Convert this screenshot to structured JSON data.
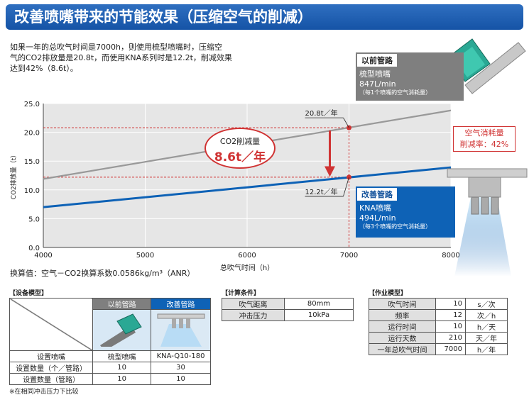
{
  "header": {
    "title": "改善喷嘴带来的节能效果（压缩空气的削减）"
  },
  "intro": {
    "line1": "如果一年的总吹气时间是7000h，则使用梳型喷嘴时，压缩空",
    "line2": "气的CO2排放量是20.8t，而使用KNA系列时是12.2t，削减效果",
    "line3": "达到42%（8.6t）。"
  },
  "before_box": {
    "header": "以前管路",
    "line1": "梳型喷嘴",
    "line2": "847L/min",
    "line3": "（每1个喷嘴的空气消耗量）"
  },
  "after_box": {
    "header": "改善管路",
    "line1": "KNA喷嘴",
    "line2": "494L/min",
    "line3": "（每3个喷嘴的空气消耗量）"
  },
  "reduction_note": {
    "line1": "空气消耗量",
    "line2": "削减率：42%"
  },
  "reduction_oval": {
    "label": "CO2削减量",
    "value": "8.6t／年"
  },
  "chart_data": {
    "type": "line",
    "xlabel": "总吹气时间（h）",
    "ylabel": "CO2排放量（t）",
    "xlim": [
      4000,
      8000
    ],
    "ylim": [
      0,
      25
    ],
    "x_ticks": [
      "4000",
      "5000",
      "6000",
      "7000",
      "8000"
    ],
    "y_ticks": [
      "0.0",
      "5.0",
      "10.0",
      "15.0",
      "20.0",
      "25.0"
    ],
    "grid": true,
    "series": [
      {
        "label": "以前管路（梳型喷嘴）",
        "color": "#999999",
        "x": [
          4000,
          8000
        ],
        "y": [
          11.9,
          23.8
        ]
      },
      {
        "label": "改善管路（KNA喷嘴）",
        "color": "#0e62b6",
        "x": [
          4000,
          8000
        ],
        "y": [
          7.0,
          13.9
        ]
      }
    ],
    "annotations": [
      {
        "text": "20.8t／年",
        "x": 7000,
        "y": 20.8
      },
      {
        "text": "12.2t／年",
        "x": 7000,
        "y": 12.2
      }
    ]
  },
  "conversion_text": "换算值：空气－CO2换算系数0.0586kg/m³（ANR）",
  "equipment_table": {
    "title": "【设备模型】",
    "col_before": "以前管路",
    "col_after": "改善管路",
    "rows": [
      {
        "label": "设置喷嘴",
        "before": "梳型喷嘴",
        "after": "KNA-Q10-180"
      },
      {
        "label": "设置数量（个／管路）",
        "before": "10",
        "after": "30"
      },
      {
        "label": "设置数量（管路）",
        "before": "10",
        "after": "10"
      }
    ]
  },
  "calc_table": {
    "title": "【计算条件】",
    "rows": [
      {
        "label": "吹气距离",
        "value": "80mm"
      },
      {
        "label": "冲击压力",
        "value": "10kPa"
      }
    ]
  },
  "work_table": {
    "title": "【作业模型】",
    "rows": [
      {
        "label": "吹气时间",
        "value": "10",
        "unit": "s／次"
      },
      {
        "label": "频率",
        "value": "12",
        "unit": "次／h"
      },
      {
        "label": "运行时间",
        "value": "10",
        "unit": "h／天"
      },
      {
        "label": "运行天数",
        "value": "210",
        "unit": "天／年"
      },
      {
        "label": "一年总吹气时间",
        "value": "7000",
        "unit": "h／年"
      }
    ]
  },
  "footnote": "※在相同冲击压力下比较"
}
